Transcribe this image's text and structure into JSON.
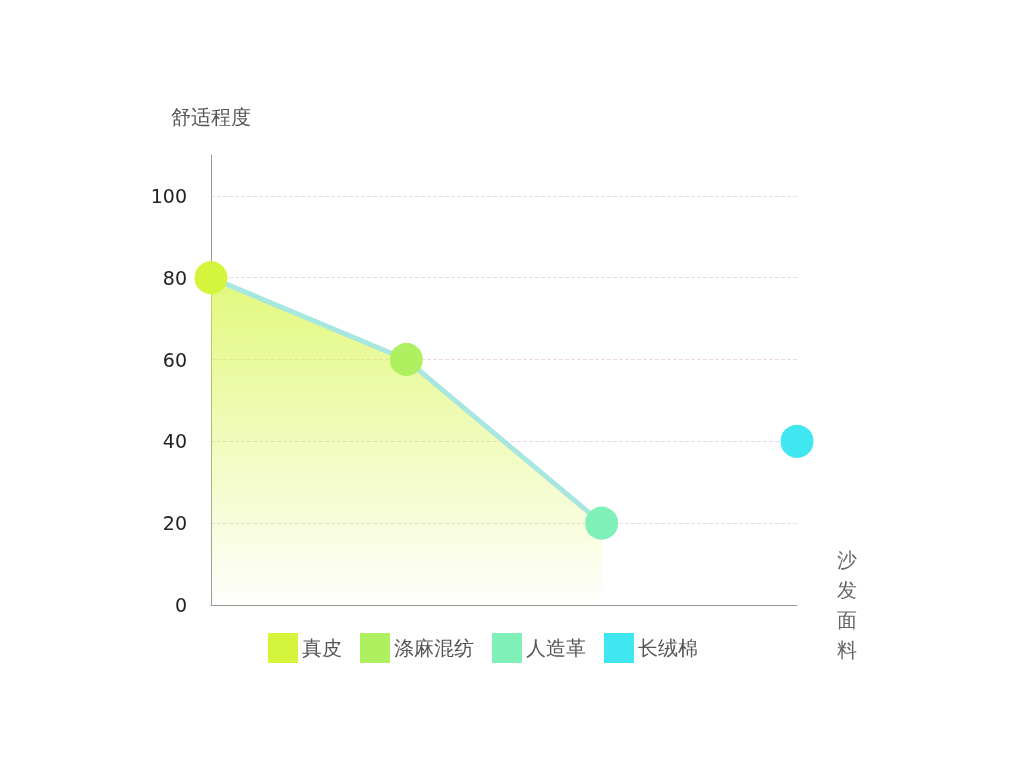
{
  "chart_data": {
    "type": "area",
    "ylabel": "舒适程度",
    "xlabel": "沙发面料",
    "categories": [
      null,
      null,
      null,
      null
    ],
    "ylim": [
      0,
      110
    ],
    "yticks": [
      0,
      20,
      40,
      60,
      80,
      100
    ],
    "grid": "y",
    "legend": "bottom",
    "marker": "circle",
    "series": [
      {
        "color": "#a8e6e0",
        "marker": "none",
        "values": [
          80,
          60,
          20,
          null
        ]
      },
      {
        "type": "line",
        "name": "真皮",
        "color": "#d4f53c",
        "values": [
          80,
          null,
          null,
          null
        ]
      },
      {
        "type": "line",
        "name": "涤麻混纺",
        "color": "#aef060",
        "values": [
          null,
          60,
          null,
          null
        ]
      },
      {
        "type": "line",
        "name": "人造革",
        "color": "#7ef0b8",
        "values": [
          null,
          null,
          20,
          null
        ]
      },
      {
        "type": "line",
        "name": "长绒棉",
        "color": "#40e6f0",
        "values": [
          null,
          null,
          null,
          40
        ]
      }
    ]
  }
}
